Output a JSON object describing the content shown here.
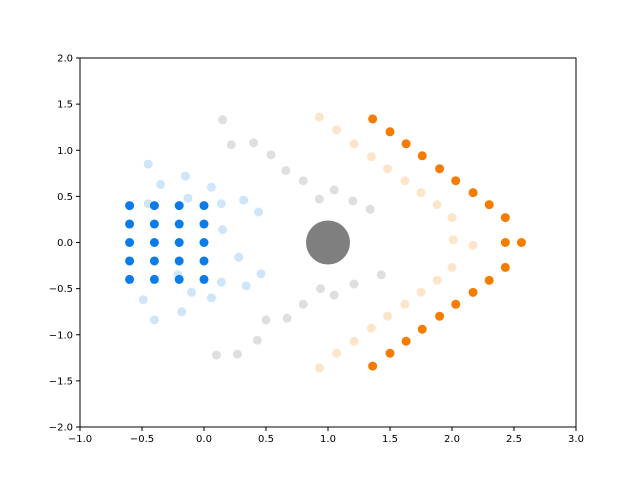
{
  "colors": {
    "blue": "#0a7be8",
    "gray": "#7f7f7f",
    "orange": "#f57c00"
  },
  "chart_data": {
    "type": "scatter",
    "title": "",
    "xlabel": "",
    "ylabel": "",
    "xlim": [
      -1.0,
      3.0
    ],
    "ylim": [
      -2.0,
      2.0
    ],
    "grid": false,
    "x_ticks": [
      -1.0,
      -0.5,
      0.0,
      0.5,
      1.0,
      1.5,
      2.0,
      2.5,
      3.0
    ],
    "y_ticks": [
      -2.0,
      -1.5,
      -1.0,
      -0.5,
      0.0,
      0.5,
      1.0,
      1.5,
      2.0
    ],
    "x_tick_labels": [
      "−1.0",
      "−0.5",
      "0.0",
      "0.5",
      "1.0",
      "1.5",
      "2.0",
      "2.5",
      "3.0"
    ],
    "y_tick_labels": [
      "−2.0",
      "−1.5",
      "−1.0",
      "−0.5",
      "0.0",
      "0.5",
      "1.0",
      "1.5",
      "2.0"
    ],
    "series": [
      {
        "color": "blue",
        "opacity": 1.0,
        "points": [
          [
            -0.6,
            0.4
          ],
          [
            -0.4,
            0.4
          ],
          [
            -0.2,
            0.4
          ],
          [
            0.0,
            0.4
          ],
          [
            -0.6,
            0.2
          ],
          [
            -0.4,
            0.2
          ],
          [
            -0.2,
            0.2
          ],
          [
            0.0,
            0.2
          ],
          [
            -0.6,
            0.0
          ],
          [
            -0.4,
            0.0
          ],
          [
            -0.2,
            0.0
          ],
          [
            0.0,
            0.0
          ],
          [
            -0.6,
            -0.2
          ],
          [
            -0.4,
            -0.2
          ],
          [
            -0.2,
            -0.2
          ],
          [
            0.0,
            -0.2
          ],
          [
            -0.6,
            -0.4
          ],
          [
            -0.4,
            -0.4
          ],
          [
            -0.2,
            -0.4
          ],
          [
            0.0,
            -0.4
          ]
        ]
      },
      {
        "color": "blue",
        "opacity": 0.2,
        "points": [
          [
            -0.45,
            0.85
          ],
          [
            -0.35,
            0.63
          ],
          [
            -0.15,
            0.72
          ],
          [
            0.06,
            0.6
          ],
          [
            -0.45,
            0.42
          ],
          [
            -0.13,
            0.48
          ],
          [
            0.14,
            0.42
          ],
          [
            0.32,
            0.46
          ],
          [
            0.44,
            0.33
          ],
          [
            0.15,
            0.14
          ],
          [
            -0.21,
            -0.35
          ],
          [
            -0.1,
            -0.54
          ],
          [
            0.14,
            -0.43
          ],
          [
            0.06,
            -0.6
          ],
          [
            -0.49,
            -0.62
          ],
          [
            -0.18,
            -0.75
          ],
          [
            -0.4,
            -0.84
          ],
          [
            0.28,
            -0.16
          ],
          [
            0.46,
            -0.34
          ],
          [
            0.34,
            -0.47
          ]
        ]
      },
      {
        "color": "gray",
        "opacity": 0.25,
        "points": [
          [
            0.15,
            1.33
          ],
          [
            0.22,
            1.06
          ],
          [
            0.4,
            1.08
          ],
          [
            0.54,
            0.95
          ],
          [
            0.66,
            0.78
          ],
          [
            0.8,
            0.67
          ],
          [
            0.93,
            0.47
          ],
          [
            1.05,
            0.57
          ],
          [
            1.2,
            0.45
          ],
          [
            1.34,
            0.36
          ],
          [
            0.1,
            -1.22
          ],
          [
            0.27,
            -1.21
          ],
          [
            0.43,
            -1.06
          ],
          [
            0.5,
            -0.84
          ],
          [
            0.67,
            -0.82
          ],
          [
            0.8,
            -0.67
          ],
          [
            0.94,
            -0.5
          ],
          [
            1.05,
            -0.57
          ],
          [
            1.21,
            -0.45
          ],
          [
            1.43,
            -0.35
          ]
        ]
      },
      {
        "color": "orange",
        "opacity": 0.2,
        "points": [
          [
            0.93,
            1.36
          ],
          [
            1.07,
            1.22
          ],
          [
            1.21,
            1.07
          ],
          [
            1.35,
            0.93
          ],
          [
            1.48,
            0.8
          ],
          [
            1.62,
            0.67
          ],
          [
            1.75,
            0.54
          ],
          [
            1.88,
            0.41
          ],
          [
            2.0,
            0.27
          ],
          [
            2.01,
            0.03
          ],
          [
            2.17,
            -0.03
          ],
          [
            0.93,
            -1.36
          ],
          [
            1.07,
            -1.2
          ],
          [
            1.21,
            -1.07
          ],
          [
            1.35,
            -0.93
          ],
          [
            1.48,
            -0.8
          ],
          [
            1.62,
            -0.67
          ],
          [
            1.75,
            -0.54
          ],
          [
            1.88,
            -0.41
          ],
          [
            2.0,
            -0.27
          ]
        ]
      },
      {
        "color": "orange",
        "opacity": 1.0,
        "points": [
          [
            1.36,
            1.34
          ],
          [
            1.5,
            1.2
          ],
          [
            1.63,
            1.07
          ],
          [
            1.76,
            0.94
          ],
          [
            1.9,
            0.8
          ],
          [
            2.03,
            0.67
          ],
          [
            2.17,
            0.54
          ],
          [
            2.3,
            0.41
          ],
          [
            2.43,
            0.27
          ],
          [
            2.43,
            0.0
          ],
          [
            2.56,
            0.0
          ],
          [
            1.36,
            -1.34
          ],
          [
            1.5,
            -1.2
          ],
          [
            1.63,
            -1.07
          ],
          [
            1.76,
            -0.94
          ],
          [
            1.9,
            -0.8
          ],
          [
            2.03,
            -0.67
          ],
          [
            2.17,
            -0.54
          ],
          [
            2.3,
            -0.41
          ],
          [
            2.43,
            -0.27
          ]
        ]
      }
    ],
    "center_marker": {
      "x": 1.0,
      "y": 0.0,
      "color": "gray"
    }
  }
}
